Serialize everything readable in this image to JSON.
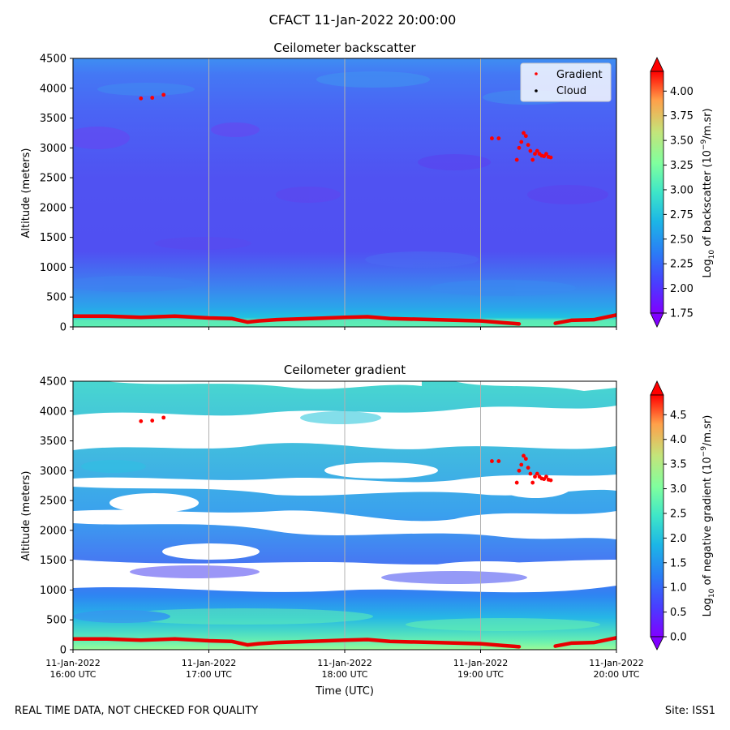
{
  "suptitle": "CFACT 11-Jan-2022 20:00:00",
  "footer": {
    "left": "REAL TIME DATA, NOT CHECKED FOR QUALITY",
    "right": "Site: ISS1"
  },
  "chart_data": [
    {
      "type": "heatmap",
      "title": "Ceilometer backscatter",
      "ylabel": "Altitude (meters)",
      "ylim": [
        0,
        4500
      ],
      "yticks": [
        0,
        500,
        1000,
        1500,
        2000,
        2500,
        3000,
        3500,
        4000,
        4500
      ],
      "xlim": [
        "2022-01-11T16:00",
        "2022-01-11T20:00"
      ],
      "grid": true,
      "legend": {
        "position": "top-right",
        "entries": [
          "Gradient",
          "Cloud"
        ]
      },
      "colorbar": {
        "label": "Log10 of backscatter (10^-9/m.sr)",
        "range": [
          1.75,
          4.2
        ],
        "ticks": [
          "1.75",
          "2.00",
          "2.25",
          "2.50",
          "2.75",
          "3.00",
          "3.25",
          "3.50",
          "3.75",
          "4.00"
        ],
        "extend": "both",
        "colormap": "rainbow"
      },
      "field_description_values": {
        "surface_layer_0_100m": 2.8,
        "boundary_layer_100_600m": 2.3,
        "free_troposphere": 2.05,
        "upper_levels_4000_4500m": 2.25
      },
      "gradient_points": [
        {
          "t": "16:30",
          "alt": 3830
        },
        {
          "t": "16:35",
          "alt": 3840
        },
        {
          "t": "16:40",
          "alt": 3890
        },
        {
          "t": "19:05",
          "alt": 3160
        },
        {
          "t": "19:08",
          "alt": 3160
        },
        {
          "t": "19:16",
          "alt": 2800
        },
        {
          "t": "19:17",
          "alt": 3000
        },
        {
          "t": "19:18",
          "alt": 3100
        },
        {
          "t": "19:19",
          "alt": 3250
        },
        {
          "t": "19:20",
          "alt": 3200
        },
        {
          "t": "19:21",
          "alt": 3050
        },
        {
          "t": "19:22",
          "alt": 2950
        },
        {
          "t": "19:23",
          "alt": 2800
        },
        {
          "t": "19:24",
          "alt": 2900
        },
        {
          "t": "19:25",
          "alt": 2950
        },
        {
          "t": "19:26",
          "alt": 2900
        },
        {
          "t": "19:27",
          "alt": 2870
        },
        {
          "t": "19:28",
          "alt": 2860
        },
        {
          "t": "19:29",
          "alt": 2900
        },
        {
          "t": "19:30",
          "alt": 2850
        },
        {
          "t": "19:31",
          "alt": 2840
        }
      ],
      "boundary_line": [
        {
          "t": "16:00",
          "alt": 180
        },
        {
          "t": "16:15",
          "alt": 180
        },
        {
          "t": "16:30",
          "alt": 160
        },
        {
          "t": "16:45",
          "alt": 180
        },
        {
          "t": "17:00",
          "alt": 150
        },
        {
          "t": "17:10",
          "alt": 140
        },
        {
          "t": "17:17",
          "alt": 80
        },
        {
          "t": "17:22",
          "alt": 100
        },
        {
          "t": "17:30",
          "alt": 120
        },
        {
          "t": "17:45",
          "alt": 140
        },
        {
          "t": "18:00",
          "alt": 160
        },
        {
          "t": "18:10",
          "alt": 170
        },
        {
          "t": "18:20",
          "alt": 140
        },
        {
          "t": "18:40",
          "alt": 120
        },
        {
          "t": "19:00",
          "alt": 100
        },
        {
          "t": "19:10",
          "alt": 70
        },
        {
          "t": "19:17",
          "alt": 50
        },
        {
          "t": "19:30",
          "alt": null
        },
        {
          "t": "19:33",
          "alt": 60
        },
        {
          "t": "19:40",
          "alt": 110
        },
        {
          "t": "19:50",
          "alt": 120
        },
        {
          "t": "20:00",
          "alt": 200
        }
      ]
    },
    {
      "type": "heatmap",
      "title": "Ceilometer gradient",
      "ylabel": "Altitude (meters)",
      "xlabel": "Time (UTC)",
      "ylim": [
        0,
        4500
      ],
      "yticks": [
        0,
        500,
        1000,
        1500,
        2000,
        2500,
        3000,
        3500,
        4000,
        4500
      ],
      "xticks": [
        {
          "date": "11-Jan-2022",
          "time": "16:00 UTC"
        },
        {
          "date": "11-Jan-2022",
          "time": "17:00 UTC"
        },
        {
          "date": "11-Jan-2022",
          "time": "18:00 UTC"
        },
        {
          "date": "11-Jan-2022",
          "time": "19:00 UTC"
        },
        {
          "date": "11-Jan-2022",
          "time": "20:00 UTC"
        }
      ],
      "grid": true,
      "colorbar": {
        "label": "Log10 of negative gradient (10^-9/m.sr)",
        "range": [
          0.0,
          4.9
        ],
        "ticks": [
          "0.0",
          "0.5",
          "1.0",
          "1.5",
          "2.0",
          "2.5",
          "3.0",
          "3.5",
          "4.0",
          "4.5"
        ],
        "extend": "both",
        "colormap": "rainbow"
      },
      "masked_bands_m": [
        [
          850,
          1100
        ],
        [
          1650,
          2000
        ],
        [
          3850,
          3950
        ]
      ],
      "gradient_points": "same as backscatter panel",
      "boundary_line": "same as backscatter panel"
    }
  ]
}
